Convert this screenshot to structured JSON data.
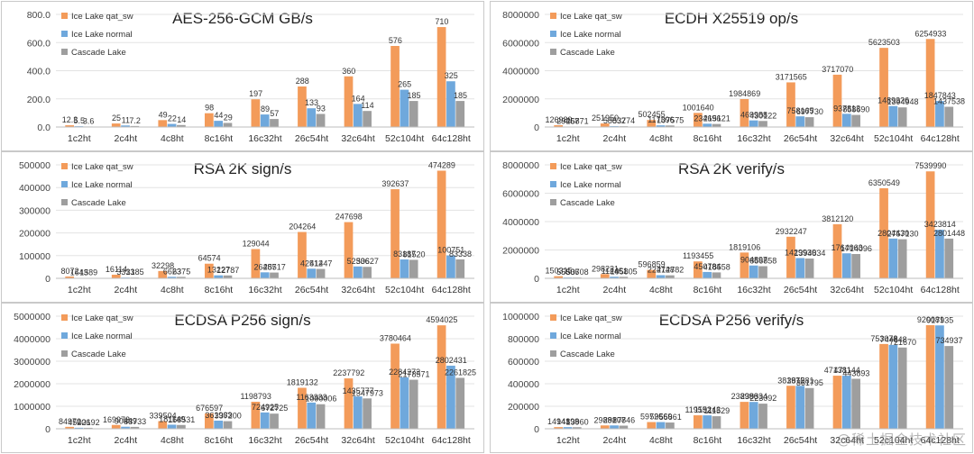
{
  "colors": {
    "s1": "#F39B5A",
    "s2": "#6FA8DC",
    "s3": "#9E9E9E"
  },
  "watermark": "@稀土掘金技术社区",
  "chart_data": [
    {
      "type": "bar",
      "title": "AES-256-GCM GB/s",
      "categories": [
        "1c2ht",
        "2c4ht",
        "4c8ht",
        "8c16ht",
        "16c32ht",
        "26c54ht",
        "32c64ht",
        "52c104ht",
        "64c128ht"
      ],
      "yticks": [
        "0.0",
        "200.0",
        "400.0",
        "600.0",
        "800.0"
      ],
      "ylim": [
        0,
        800
      ],
      "series": [
        {
          "name": "Ice Lake qat_sw",
          "values": [
            12.3,
            25,
            49,
            98,
            197,
            288,
            360,
            576,
            710
          ],
          "labels": [
            "12.3",
            "25",
            "49",
            "98",
            "197",
            "288",
            "360",
            "576",
            "710"
          ]
        },
        {
          "name": "Ice Lake normal",
          "values": [
            5.5,
            11,
            22,
            44,
            89,
            133,
            164,
            265,
            325
          ],
          "labels": [
            "5.5",
            "11",
            "22",
            "44",
            "89",
            "133",
            "164",
            "265",
            "325"
          ]
        },
        {
          "name": "Cascade Lake",
          "values": [
            3.6,
            7.2,
            14,
            29,
            57,
            93,
            114,
            185,
            185
          ],
          "labels": [
            "3.6",
            "7.2",
            "14",
            "29",
            "57",
            "93",
            "114",
            "185",
            "185"
          ]
        }
      ]
    },
    {
      "type": "bar",
      "title": "ECDH X25519 op/s",
      "categories": [
        "1c2ht",
        "2c4ht",
        "4c8ht",
        "8c16ht",
        "16c32ht",
        "26c54ht",
        "32c64ht",
        "52c104ht",
        "64c128ht"
      ],
      "yticks": [
        "0",
        "2000000",
        "4000000",
        "6000000",
        "8000000"
      ],
      "ylim": [
        0,
        8000000
      ],
      "series": [
        {
          "name": "Ice Lake qat_sw",
          "values": [
            126989,
            251950,
            502455,
            1001640,
            1984869,
            3171565,
            3717070,
            5623503,
            6254933
          ],
          "labels": [
            "126989",
            "251950",
            "502455",
            "1001640",
            "1984869",
            "3171565",
            "3717070",
            "5623503",
            "6254933"
          ]
        },
        {
          "name": "Ice Lake normal",
          "values": [
            29457,
            58832,
            117396,
            234696,
            469988,
            758165,
            937813,
            1489326,
            1847843
          ],
          "labels": [
            "29457",
            "58832",
            "117396",
            "234696",
            "469988",
            "758165",
            "937813",
            "1489326",
            "1847843"
          ]
        },
        {
          "name": "Cascade Lake",
          "values": [
            26871,
            53774,
            107575,
            215121,
            430122,
            697730,
            858690,
            1394948,
            1437538
          ],
          "labels": [
            "26871",
            "53774",
            "107575",
            "215121",
            "430122",
            "697730",
            "858690",
            "1394948",
            "1437538"
          ]
        }
      ]
    },
    {
      "type": "bar",
      "title": "RSA 2K sign/s",
      "categories": [
        "1c2ht",
        "2c4ht",
        "4c8ht",
        "8c16ht",
        "16c32ht",
        "26c54ht",
        "32c64ht",
        "52c104ht",
        "64c128ht"
      ],
      "yticks": [
        "0",
        "100000",
        "200000",
        "300000",
        "400000",
        "500000"
      ],
      "ylim": [
        0,
        500000
      ],
      "series": [
        {
          "name": "Ice Lake qat_sw",
          "values": [
            8072,
            16114,
            32298,
            64574,
            129044,
            204264,
            247698,
            392637,
            474289
          ],
          "labels": [
            "8072",
            "16114",
            "32298",
            "64574",
            "129044",
            "204264",
            "247698",
            "392637",
            "474289"
          ]
        },
        {
          "name": "Ice Lake normal",
          "values": [
            1643,
            3313,
            6623,
            13227,
            26487,
            42512,
            52336,
            83187,
            100751
          ],
          "labels": [
            "1643",
            "3313",
            "6623",
            "13227",
            "26487",
            "42512",
            "52336",
            "83187",
            "100751"
          ]
        },
        {
          "name": "Cascade Lake",
          "values": [
            1589,
            3185,
            6375,
            12787,
            25517,
            41447,
            50627,
            81520,
            83338
          ],
          "labels": [
            "1589",
            "3185",
            "6375",
            "12787",
            "25517",
            "41447",
            "50627",
            "81520",
            "83338"
          ]
        }
      ]
    },
    {
      "type": "bar",
      "title": "RSA 2K verify/s",
      "categories": [
        "1c2ht",
        "2c4ht",
        "4c8ht",
        "8c16ht",
        "16c32ht",
        "26c54ht",
        "32c64ht",
        "52c104ht",
        "64c128ht"
      ],
      "yticks": [
        "0",
        "2000000",
        "4000000",
        "6000000",
        "8000000"
      ],
      "ylim": [
        0,
        8000000
      ],
      "series": [
        {
          "name": "Ice Lake qat_sw",
          "values": [
            150315,
            298221,
            596859,
            1193455,
            1819106,
            2932247,
            3812120,
            6350549,
            7539990
          ],
          "labels": [
            "150315",
            "298221",
            "596859",
            "1193455",
            "1819106",
            "2932247",
            "3812120",
            "6350549",
            "7539990"
          ]
        },
        {
          "name": "Ice Lake normal",
          "values": [
            55506,
            112451,
            224748,
            450784,
            904897,
            1429930,
            1764063,
            2804430,
            3423814
          ],
          "labels": [
            "55506",
            "112451",
            "224748",
            "450784",
            "904897",
            "1429930",
            "1764063",
            "2804430",
            "3423814"
          ]
        },
        {
          "name": "Cascade Lake",
          "values": [
            53708,
            105805,
            212782,
            418558,
            856858,
            1394834,
            1714096,
            2757130,
            2801448
          ],
          "labels": [
            "53708",
            "105805",
            "212782",
            "418558",
            "856858",
            "1394834",
            "1714096",
            "2757130",
            "2801448"
          ]
        }
      ]
    },
    {
      "type": "bar",
      "title": "ECDSA P256 sign/s",
      "categories": [
        "1c2ht",
        "2c4ht",
        "4c8ht",
        "8c16ht",
        "16c32ht",
        "26c54ht",
        "32c64ht",
        "52c104ht",
        "64c128ht"
      ],
      "yticks": [
        "0",
        "1000000",
        "2000000",
        "3000000",
        "4000000",
        "5000000"
      ],
      "ylim": [
        0,
        5000000
      ],
      "series": [
        {
          "name": "Ice Lake qat_sw",
          "values": [
            84970,
            169973,
            339504,
            676597,
            1198793,
            1819132,
            2237792,
            3780464,
            4594025
          ],
          "labels": [
            "84970",
            "169973",
            "339504",
            "676597",
            "1198793",
            "1819132",
            "2237792",
            "3780464",
            "4594025"
          ]
        },
        {
          "name": "Ice Lake normal",
          "values": [
            45206,
            90449,
            181149,
            361963,
            724925,
            1163333,
            1435777,
            2284273,
            2802431
          ],
          "labels": [
            "45206",
            "90449",
            "181149",
            "361963",
            "724925",
            "1163333",
            "1435777",
            "2284273",
            "2802431"
          ]
        },
        {
          "name": "Cascade Lake",
          "values": [
            42192,
            83733,
            168531,
            337200,
            672725,
            1090006,
            1347973,
            2178571,
            2261825
          ],
          "labels": [
            "42192",
            "83733",
            "168531",
            "337200",
            "672725",
            "1090006",
            "1347973",
            "2178571",
            "2261825"
          ]
        }
      ]
    },
    {
      "type": "bar",
      "title": "ECDSA P256 verify/s",
      "categories": [
        "1c2ht",
        "2c4ht",
        "4c8ht",
        "8c16ht",
        "16c32ht",
        "26c54ht",
        "32c64ht",
        "52c104ht",
        "64c128ht"
      ],
      "yticks": [
        "0",
        "200000",
        "400000",
        "600000",
        "800000",
        "1000000"
      ],
      "ylim": [
        0,
        1000000
      ],
      "series": [
        {
          "name": "Ice Lake qat_sw",
          "values": [
            14941,
            29881,
            59726,
            119552,
            238996,
            381975,
            471381,
            753078,
            920081
          ],
          "labels": [
            "14941",
            "29881",
            "59726",
            "119552",
            "238996",
            "381975",
            "471381",
            "753078",
            "920081"
          ]
        },
        {
          "name": "Ice Lake normal",
          "values": [
            14898,
            29807,
            59569,
            119243,
            238334,
            381281,
            471144,
            744848,
            917935
          ],
          "labels": [
            "14898",
            "29807",
            "59569",
            "119243",
            "238334",
            "381281",
            "471144",
            "744848",
            "917935"
          ]
        },
        {
          "name": "Cascade Lake",
          "values": [
            13960,
            27846,
            55661,
            111529,
            223092,
            361795,
            443893,
            721670,
            734937
          ],
          "labels": [
            "13960",
            "27846",
            "55661",
            "111529",
            "223092",
            "361795",
            "443893",
            "721670",
            "734937"
          ]
        }
      ]
    }
  ]
}
